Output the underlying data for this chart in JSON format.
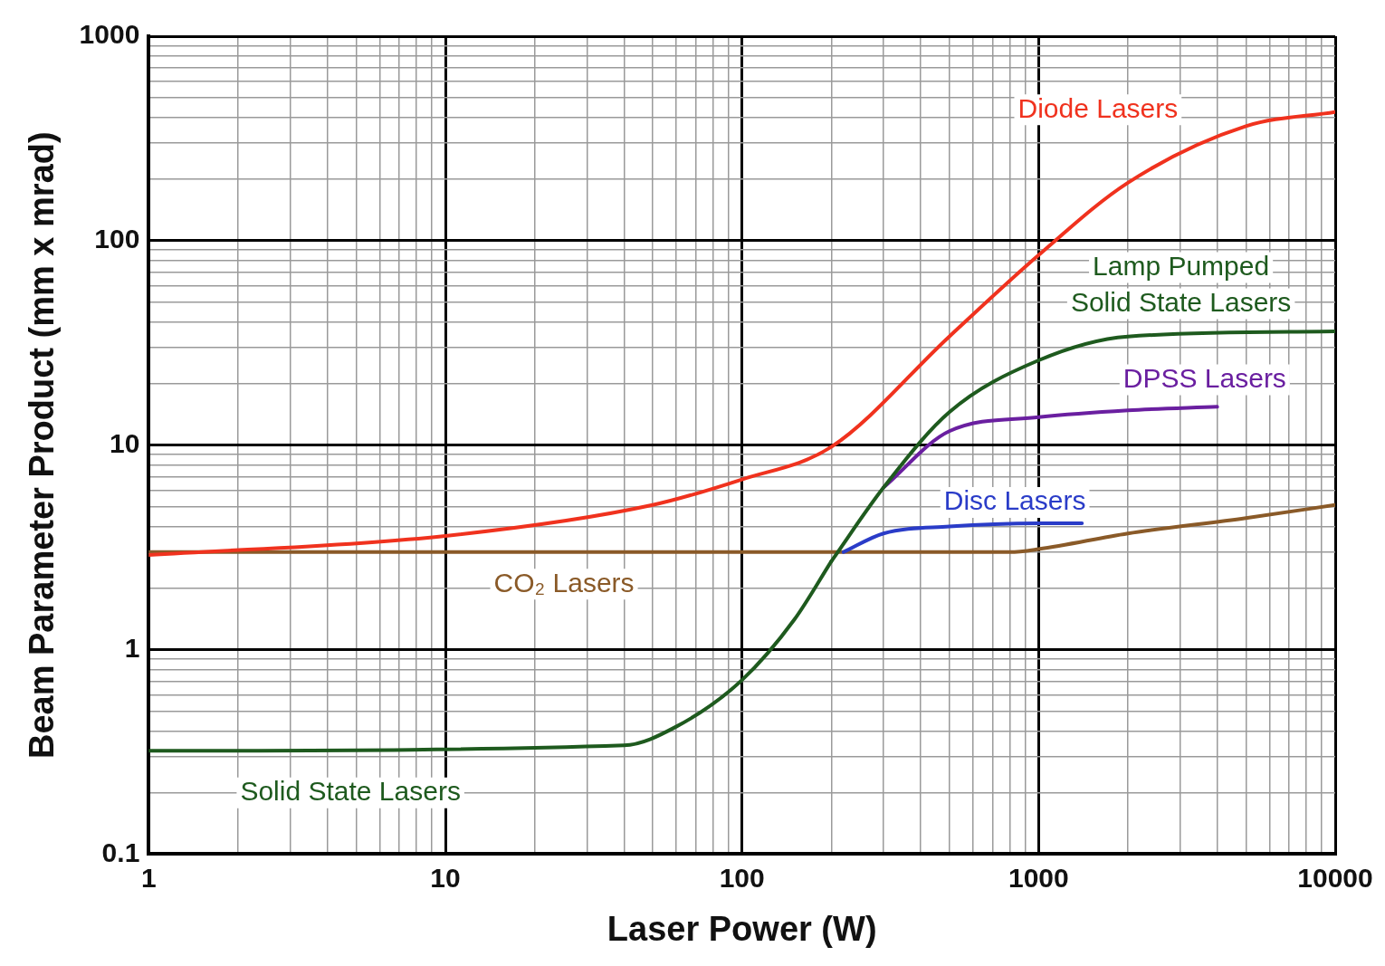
{
  "chart_data": {
    "type": "line",
    "xlabel": "Laser Power (W)",
    "ylabel": "Beam Parameter Product (mm x mrad)",
    "log": "xy",
    "grid": true,
    "legend": false,
    "marker": "none",
    "line_style": "solid",
    "xlim": [
      1,
      10000
    ],
    "xticks": [
      1,
      10,
      100,
      1000,
      10000
    ],
    "ylim": [
      0.1,
      1000
    ],
    "yticks": [
      0.1,
      1,
      10,
      100,
      1000
    ],
    "series": [
      {
        "name": "Diode Lasers",
        "color": "#f0321e",
        "x": [
          1,
          10,
          50,
          100,
          200,
          500,
          1000,
          2000,
          5000,
          10000
        ],
        "values": [
          2.9,
          3.6,
          5.1,
          6.8,
          9.8,
          34,
          85,
          192,
          363,
          426
        ]
      },
      {
        "name": "Solid State Lasers",
        "color": "#1e5a1e",
        "x": [
          1,
          40,
          60,
          100,
          150,
          200
        ],
        "values": [
          0.32,
          0.34,
          0.42,
          0.71,
          1.4,
          2.7
        ]
      },
      {
        "name": "Lamp Pumped Solid State Lasers",
        "color": "#1e5a1e",
        "x": [
          200,
          300,
          500,
          1000,
          2000,
          10000
        ],
        "values": [
          2.7,
          6.2,
          14.5,
          26,
          34,
          36
        ]
      },
      {
        "name": "DPSS Lasers",
        "color": "#6a1fa0",
        "x": [
          300,
          500,
          1000,
          2000,
          4000
        ],
        "values": [
          6.2,
          11.7,
          13.7,
          14.8,
          15.4
        ]
      },
      {
        "name": "Disc Lasers",
        "color": "#2a3cc8",
        "x": [
          220,
          300,
          500,
          1000,
          1400
        ],
        "values": [
          3.0,
          3.7,
          4.0,
          4.15,
          4.15
        ]
      },
      {
        "name": "CO₂ Lasers",
        "color": "#8a5a28",
        "x": [
          1,
          100,
          800,
          1000,
          2000,
          5000,
          10000
        ],
        "values": [
          3.0,
          3.0,
          3.0,
          3.1,
          3.7,
          4.4,
          5.1
        ]
      }
    ]
  }
}
